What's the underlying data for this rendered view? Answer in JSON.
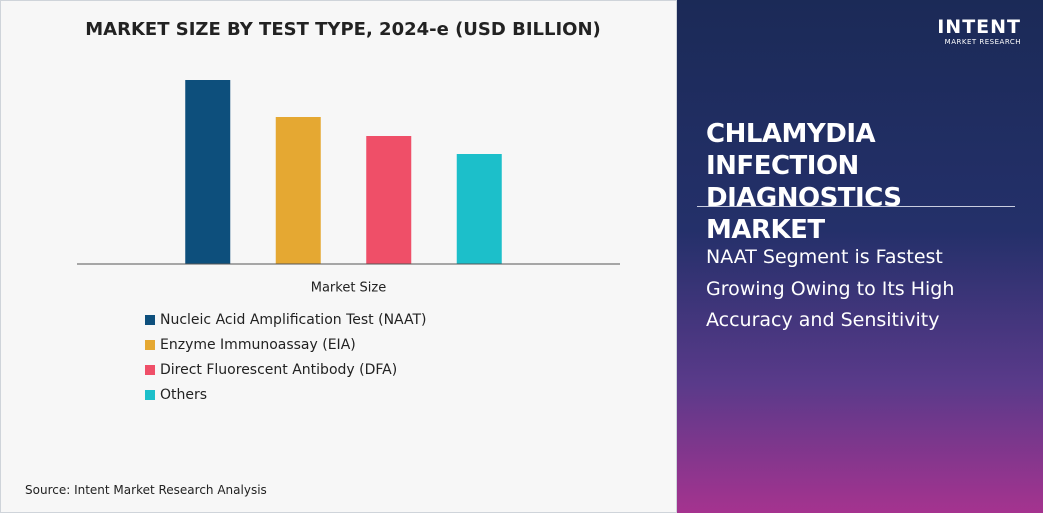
{
  "chart_data": {
    "type": "bar",
    "title": "MARKET SIZE BY TEST TYPE, 2024-e (USD BILLION)",
    "categories": [
      "Market Size"
    ],
    "series": [
      {
        "name": "Nucleic Acid Amplification Test (NAAT)",
        "color": "#0d4f7c",
        "values": [
          184
        ]
      },
      {
        "name": "Enzyme Immunoassay (EIA)",
        "color": "#e5a832",
        "values": [
          147
        ]
      },
      {
        "name": "Direct Fluorescent Antibody (DFA)",
        "color": "#ef4f68",
        "values": [
          128
        ]
      },
      {
        "name": "Others",
        "color": "#1cbfca",
        "values": [
          110
        ]
      }
    ],
    "ylim": [
      0,
      200
    ]
  },
  "source": "Source: Intent Market Research Analysis",
  "panel": {
    "logo": "INTENT",
    "logo_sub": "MARKET RESEARCH",
    "title": "CHLAMYDIA INFECTION DIAGNOSTICS MARKET",
    "summary": "NAAT Segment is Fastest Growing Owing to Its High Accuracy and Sensitivity"
  }
}
